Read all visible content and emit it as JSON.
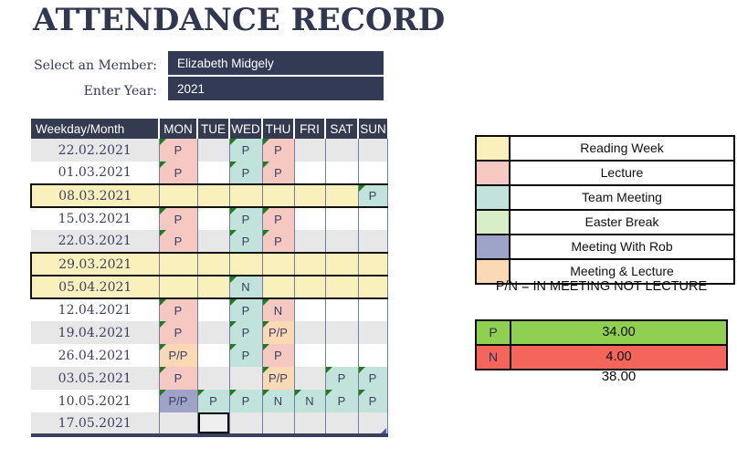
{
  "title": "ATTENDANCE RECORD",
  "form": {
    "member_label": "Select an Member:",
    "member_value": "Elizabeth Midgely",
    "year_label": "Enter Year:",
    "year_value": "2021"
  },
  "table": {
    "first_header": "Weekday/Month",
    "day_headers": [
      "MON",
      "TUE",
      "WED",
      "THU",
      "FRI",
      "SAT",
      "SUN"
    ],
    "rows": [
      {
        "date": "22.02.2021",
        "band": "gray",
        "reading": false,
        "cells": [
          {
            "v": "P",
            "bg": "lecture",
            "note": true
          },
          null,
          {
            "v": "P",
            "bg": "team",
            "note": true
          },
          {
            "v": "P",
            "bg": "lecture",
            "note": true
          },
          null,
          null,
          null
        ]
      },
      {
        "date": "01.03.2021",
        "band": "white",
        "reading": false,
        "cells": [
          {
            "v": "P",
            "bg": "lecture",
            "note": true
          },
          null,
          {
            "v": "P",
            "bg": "team",
            "note": true
          },
          {
            "v": "P",
            "bg": "lecture",
            "note": true
          },
          null,
          null,
          null
        ]
      },
      {
        "date": "08.03.2021",
        "band": "white",
        "reading": true,
        "cells": [
          null,
          null,
          null,
          null,
          null,
          null,
          {
            "v": "P",
            "bg": "team",
            "note": true
          }
        ]
      },
      {
        "date": "15.03.2021",
        "band": "white",
        "reading": false,
        "cells": [
          {
            "v": "P",
            "bg": "lecture",
            "note": true
          },
          null,
          {
            "v": "P",
            "bg": "team",
            "note": true
          },
          {
            "v": "P",
            "bg": "lecture",
            "note": true
          },
          null,
          null,
          null
        ]
      },
      {
        "date": "22.03.2021",
        "band": "gray",
        "reading": false,
        "cells": [
          {
            "v": "P",
            "bg": "lecture",
            "note": true
          },
          null,
          {
            "v": "P",
            "bg": "team",
            "note": true
          },
          {
            "v": "P",
            "bg": "lecture",
            "note": true
          },
          null,
          null,
          null
        ]
      },
      {
        "date": "29.03.2021",
        "band": "white",
        "reading": true,
        "cells": [
          null,
          null,
          null,
          null,
          null,
          null,
          null
        ]
      },
      {
        "date": "05.04.2021",
        "band": "white",
        "reading": true,
        "cells": [
          null,
          null,
          {
            "v": "N",
            "bg": "team",
            "note": true
          },
          null,
          null,
          null,
          null
        ]
      },
      {
        "date": "12.04.2021",
        "band": "white",
        "reading": false,
        "cells": [
          {
            "v": "P",
            "bg": "lecture",
            "note": true
          },
          null,
          {
            "v": "P",
            "bg": "team",
            "note": true
          },
          {
            "v": "N",
            "bg": "lecture",
            "note": true
          },
          null,
          null,
          null
        ]
      },
      {
        "date": "19.04.2021",
        "band": "gray",
        "reading": false,
        "cells": [
          {
            "v": "P",
            "bg": "lecture",
            "note": true
          },
          null,
          {
            "v": "P",
            "bg": "team",
            "note": true
          },
          {
            "v": "P/P",
            "bg": "mixed",
            "note": true
          },
          null,
          null,
          null
        ]
      },
      {
        "date": "26.04.2021",
        "band": "white",
        "reading": false,
        "cells": [
          {
            "v": "P/P",
            "bg": "mixed",
            "note": true
          },
          null,
          {
            "v": "P",
            "bg": "team",
            "note": true
          },
          {
            "v": "P",
            "bg": "lecture",
            "note": true
          },
          null,
          null,
          null
        ]
      },
      {
        "date": "03.05.2021",
        "band": "gray",
        "reading": false,
        "cells": [
          {
            "v": "P",
            "bg": "lecture",
            "note": true
          },
          null,
          null,
          {
            "v": "P/P",
            "bg": "mixed",
            "note": true
          },
          null,
          {
            "v": "P",
            "bg": "team",
            "note": true
          },
          {
            "v": "P",
            "bg": "team",
            "note": true
          }
        ]
      },
      {
        "date": "10.05.2021",
        "band": "white",
        "reading": false,
        "cells": [
          {
            "v": "P/P",
            "bg": "rob",
            "note": true
          },
          {
            "v": "P",
            "bg": "team",
            "note": true
          },
          {
            "v": "P",
            "bg": "team",
            "note": true
          },
          {
            "v": "N",
            "bg": "team",
            "note": true
          },
          {
            "v": "N",
            "bg": "team",
            "note": true
          },
          {
            "v": "P",
            "bg": "team",
            "note": true
          },
          {
            "v": "P",
            "bg": "team",
            "note": true
          }
        ]
      },
      {
        "date": "17.05.2021",
        "band": "gray",
        "reading": false,
        "selected_day": "TUE",
        "resize_handle": true,
        "cells": [
          null,
          null,
          null,
          null,
          null,
          null,
          null
        ]
      }
    ]
  },
  "legend": {
    "items": [
      {
        "label": "Reading Week",
        "color": "#FAF0BC"
      },
      {
        "label": "Lecture",
        "color": "#F5C8C2"
      },
      {
        "label": "Team Meeting",
        "color": "#C2E2DC"
      },
      {
        "label": "Easter Break",
        "color": "#D8EEC6"
      },
      {
        "label": "Meeting With Rob",
        "color": "#9FA3C8"
      },
      {
        "label": "Meeting & Lecture",
        "color": "#FCD9B5"
      }
    ],
    "note": "P/N = IN MEETING NOT LECTURE"
  },
  "summary": {
    "rows": [
      {
        "label": "P",
        "value": "34.00",
        "color": "#90D050"
      },
      {
        "label": "N",
        "value": "4.00",
        "color": "#F4655C"
      }
    ],
    "total": "38.00"
  },
  "colors": {
    "navy": "#333A56",
    "band_gray": "#E7E7E7",
    "reading_week": "#FAF0BC",
    "lecture": "#F5C8C2",
    "team_meeting": "#C2E2DC",
    "easter_break": "#D8EEC6",
    "meeting_with_rob": "#9FA3C8",
    "meeting_and_lecture": "#FCD9B5",
    "present_green": "#90D050",
    "absent_red": "#F4655C",
    "note_indicator_green": "#1F7D1F"
  }
}
